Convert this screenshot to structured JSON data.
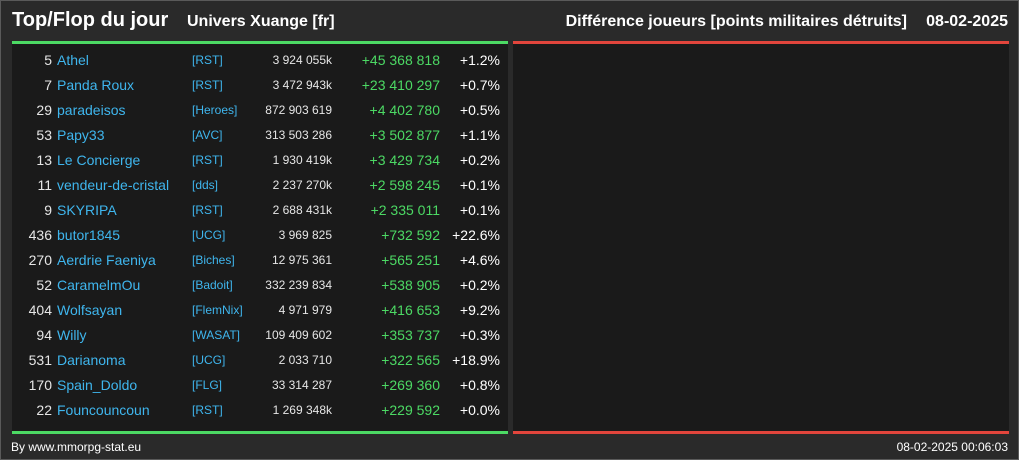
{
  "header": {
    "title": "Top/Flop du jour",
    "universe": "Univers Xuange [fr]",
    "metric": "Différence joueurs [points militaires détruits]",
    "date": "08-02-2025"
  },
  "colors": {
    "positive": "#4cd964",
    "negative": "#e2453c",
    "link": "#3fb6ee"
  },
  "rows": [
    {
      "rank": "5",
      "name": "Athel",
      "alliance": "[RST]",
      "points": "3 924 055k",
      "diff": "+45 368 818",
      "pct": "+1.2%"
    },
    {
      "rank": "7",
      "name": "Panda Roux",
      "alliance": "[RST]",
      "points": "3 472 943k",
      "diff": "+23 410 297",
      "pct": "+0.7%"
    },
    {
      "rank": "29",
      "name": "paradeisos",
      "alliance": "[Heroes]",
      "points": "872 903 619",
      "diff": "+4 402 780",
      "pct": "+0.5%"
    },
    {
      "rank": "53",
      "name": "Papy33",
      "alliance": "[AVC]",
      "points": "313 503 286",
      "diff": "+3 502 877",
      "pct": "+1.1%"
    },
    {
      "rank": "13",
      "name": "Le Concierge",
      "alliance": "[RST]",
      "points": "1 930 419k",
      "diff": "+3 429 734",
      "pct": "+0.2%"
    },
    {
      "rank": "11",
      "name": "vendeur-de-cristal",
      "alliance": "[dds]",
      "points": "2 237 270k",
      "diff": "+2 598 245",
      "pct": "+0.1%"
    },
    {
      "rank": "9",
      "name": "SKYRIPA",
      "alliance": "[RST]",
      "points": "2 688 431k",
      "diff": "+2 335 011",
      "pct": "+0.1%"
    },
    {
      "rank": "436",
      "name": "butor1845",
      "alliance": "[UCG]",
      "points": "3 969 825",
      "diff": "+732 592",
      "pct": "+22.6%"
    },
    {
      "rank": "270",
      "name": "Aerdrie Faeniya",
      "alliance": "[Biches]",
      "points": "12 975 361",
      "diff": "+565 251",
      "pct": "+4.6%"
    },
    {
      "rank": "52",
      "name": "CaramelmOu",
      "alliance": "[Badoit]",
      "points": "332 239 834",
      "diff": "+538 905",
      "pct": "+0.2%"
    },
    {
      "rank": "404",
      "name": "Wolfsayan",
      "alliance": "[FlemNix]",
      "points": "4 971 979",
      "diff": "+416 653",
      "pct": "+9.2%"
    },
    {
      "rank": "94",
      "name": "Willy",
      "alliance": "[WASAT]",
      "points": "109 409 602",
      "diff": "+353 737",
      "pct": "+0.3%"
    },
    {
      "rank": "531",
      "name": "Darianoma",
      "alliance": "[UCG]",
      "points": "2 033 710",
      "diff": "+322 565",
      "pct": "+18.9%"
    },
    {
      "rank": "170",
      "name": "Spain_Doldo",
      "alliance": "[FLG]",
      "points": "33 314 287",
      "diff": "+269 360",
      "pct": "+0.8%"
    },
    {
      "rank": "22",
      "name": "Founcouncoun",
      "alliance": "[RST]",
      "points": "1 269 348k",
      "diff": "+229 592",
      "pct": "+0.0%"
    }
  ],
  "footer": {
    "source": "By www.mmorpg-stat.eu",
    "timestamp": "08-02-2025 00:06:03"
  }
}
